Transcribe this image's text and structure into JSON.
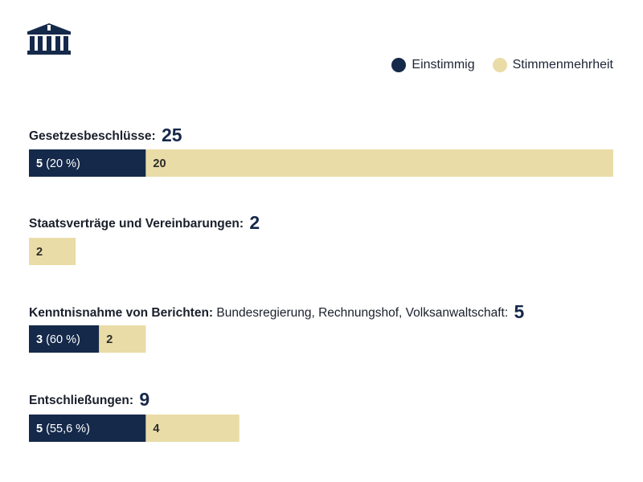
{
  "legend": {
    "unanimous_label": "Einstimmig",
    "majority_label": "Stimmenmehrheit"
  },
  "colors": {
    "unanimous": "#15294a",
    "majority": "#e9dca6",
    "unanimous_text": "#ffffff",
    "majority_text": "#2b2b2b"
  },
  "chart_data": {
    "type": "bar",
    "orientation": "horizontal",
    "stacked": true,
    "xlim": [
      0,
      25
    ],
    "series": [
      {
        "name": "Einstimmig",
        "values": [
          5,
          0,
          3,
          5
        ]
      },
      {
        "name": "Stimmenmehrheit",
        "values": [
          20,
          2,
          2,
          4
        ]
      }
    ],
    "categories": [
      {
        "name": "Gesetzesbeschlüsse:",
        "extra": "",
        "total": "25",
        "labels": [
          "5 (20 %)",
          "20"
        ]
      },
      {
        "name": "Staatsverträge und Vereinbarungen:",
        "extra": "",
        "total": "2",
        "labels": [
          "",
          "2"
        ]
      },
      {
        "name": "Kenntnisnahme von Berichten:",
        "extra": "Bundesregierung, Rechnungshof, Volksanwaltschaft:",
        "total": "5",
        "labels": [
          "3 (60 %)",
          "2"
        ]
      },
      {
        "name": "Entschließungen:",
        "extra": "",
        "total": "9",
        "labels": [
          "5 (55,6 %)",
          "4"
        ]
      }
    ],
    "legend_position": "top-right",
    "grid": false
  }
}
